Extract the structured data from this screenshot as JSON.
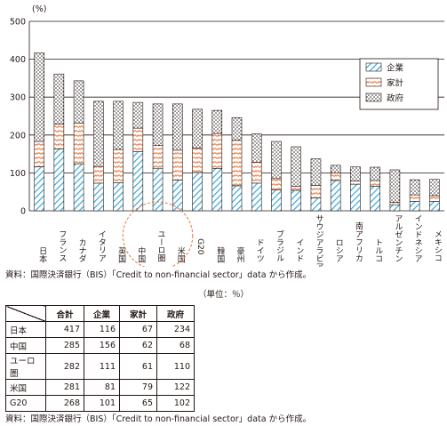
{
  "chart_data": {
    "type": "bar",
    "stacked": true,
    "unit_label": "(%)",
    "ylim": [
      0,
      500
    ],
    "yticks": [
      0,
      100,
      200,
      300,
      400,
      500
    ],
    "grid": true,
    "legend_position": "top-right",
    "categories": [
      "日本",
      "フランス",
      "カナダ",
      "イタリア",
      "英国",
      "中国",
      "ユーロ圏",
      "米国",
      "G20",
      "韓国",
      "豪州",
      "ドイツ",
      "ブラジル",
      "インド",
      "サウジアラビア",
      "ロシア",
      "南アフリカ",
      "トルコ",
      "アルゼンチン",
      "インドネシア",
      "メキシコ"
    ],
    "series": [
      {
        "name": "企業",
        "color": "#3aa6d6",
        "pattern": "hatch",
        "values": [
          116,
          163,
          124,
          73,
          74,
          156,
          111,
          81,
          101,
          112,
          66,
          73,
          55,
          54,
          34,
          80,
          70,
          65,
          16,
          25,
          25
        ]
      },
      {
        "name": "家計",
        "color": "#e8743b",
        "pattern": "wave",
        "values": [
          67,
          66,
          107,
          44,
          88,
          62,
          61,
          79,
          65,
          92,
          120,
          55,
          30,
          11,
          33,
          20,
          9,
          15,
          6,
          17,
          15
        ]
      },
      {
        "name": "政府",
        "color": "#231815",
        "pattern": "dots",
        "values": [
          234,
          132,
          112,
          172,
          127,
          68,
          110,
          122,
          102,
          61,
          60,
          75,
          98,
          104,
          70,
          20,
          37,
          35,
          86,
          40,
          43
        ]
      }
    ],
    "highlight": {
      "categories": [
        "中国",
        "ユーロ圏",
        "米国"
      ],
      "style": "dashed-circle",
      "color": "#e8743b"
    }
  },
  "source_note": "資料：国際決済銀行（BIS）「Credit to non-financial sector」data から作成。",
  "table": {
    "unit": "（単位：％）",
    "headers": [
      "合計",
      "企業",
      "家計",
      "政府"
    ],
    "rows": [
      {
        "label": "日本",
        "values": [
          "417",
          "116",
          "67",
          "234"
        ]
      },
      {
        "label": "中国",
        "values": [
          "285",
          "156",
          "62",
          "68"
        ]
      },
      {
        "label": "ユーロ圏",
        "values": [
          "282",
          "111",
          "61",
          "110"
        ]
      },
      {
        "label": "米国",
        "values": [
          "281",
          "81",
          "79",
          "122"
        ]
      },
      {
        "label": "G20",
        "values": [
          "268",
          "101",
          "65",
          "102"
        ]
      }
    ],
    "source_note": "資料：国際決済銀行（BIS）「Credit to non-financial sector」data から作成。"
  }
}
